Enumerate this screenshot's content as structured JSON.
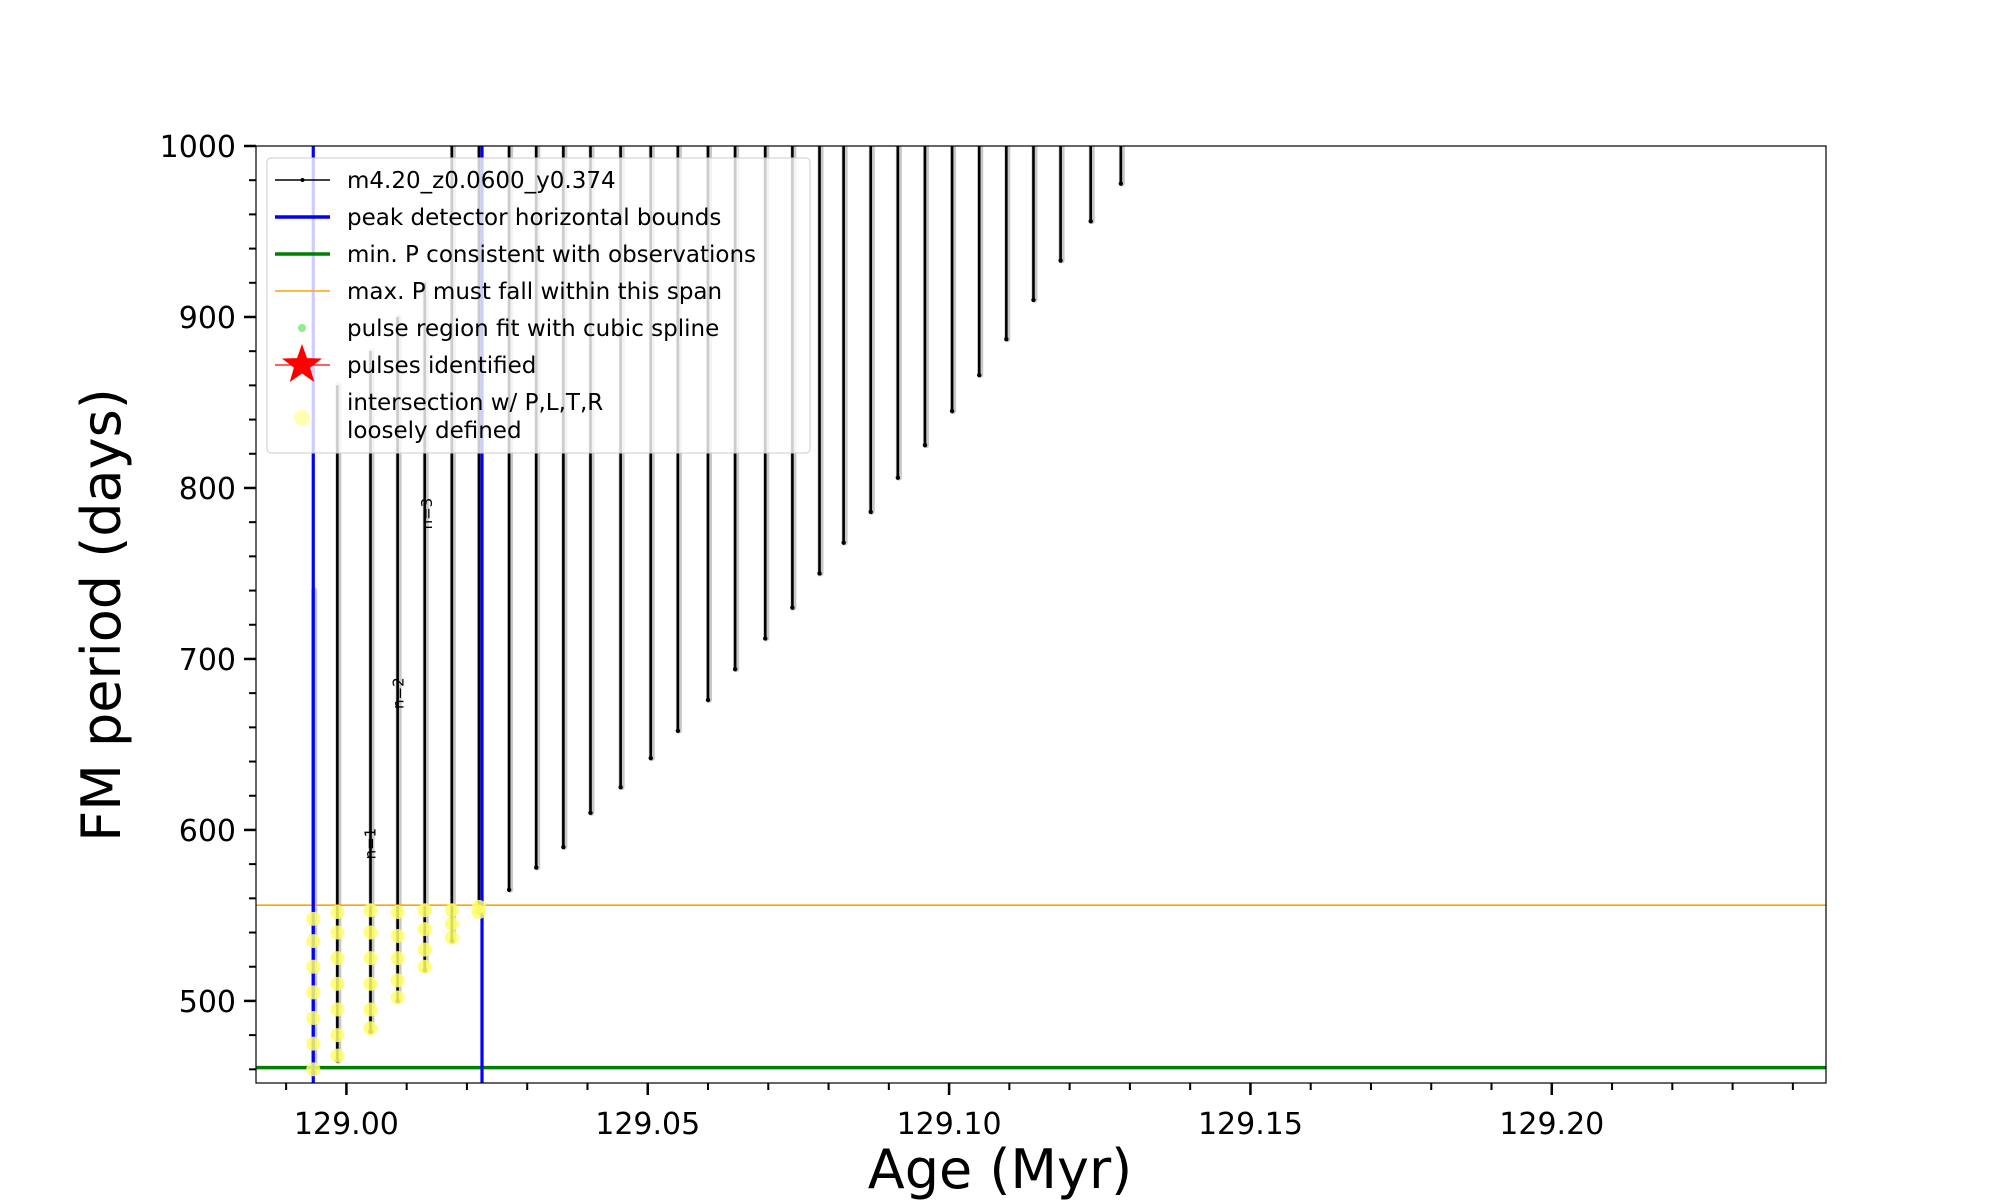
{
  "chart_data": {
    "type": "line",
    "xlabel": "Age (Myr)",
    "ylabel": "FM period (days)",
    "xlim": [
      128.985,
      129.2455
    ],
    "ylim": [
      452,
      1000
    ],
    "xticks": [
      129.0,
      129.05,
      129.1,
      129.15,
      129.2
    ],
    "xtick_labels": [
      "129.00",
      "129.05",
      "129.10",
      "129.15",
      "129.20"
    ],
    "yticks": [
      500,
      600,
      700,
      800,
      900,
      1000
    ],
    "ytick_labels": [
      "500",
      "600",
      "700",
      "800",
      "900",
      "1000"
    ],
    "grid": false,
    "legend_position": "upper-left",
    "colors": {
      "model": "#000000",
      "peak_bounds": "#0000ff",
      "min_period": "#008000",
      "max_period_span": "#ffa500",
      "spline": "#90ee90",
      "pulses": "#ff0000",
      "intersection": "#ffff66",
      "pulse_shadow": "#c8c8c8"
    },
    "series": [
      {
        "name": "m4.20_z0.0600_y0.374",
        "kind": "pulse-train",
        "pulses": [
          {
            "age": 128.9945,
            "min_period": 458,
            "max_period": 740
          },
          {
            "age": 128.9985,
            "min_period": 465,
            "max_period": 860
          },
          {
            "age": 129.004,
            "min_period": 482,
            "max_period": 880
          },
          {
            "age": 129.0085,
            "min_period": 500,
            "max_period": 900
          },
          {
            "age": 129.013,
            "min_period": 518,
            "max_period": 920
          },
          {
            "age": 129.0175,
            "min_period": 535,
            "max_period": 1000
          },
          {
            "age": 129.022,
            "min_period": 552,
            "max_period": 1000
          },
          {
            "age": 129.027,
            "min_period": 565,
            "max_period": 1000
          },
          {
            "age": 129.0315,
            "min_period": 578,
            "max_period": 1000
          },
          {
            "age": 129.036,
            "min_period": 590,
            "max_period": 1000
          },
          {
            "age": 129.0405,
            "min_period": 610,
            "max_period": 1000
          },
          {
            "age": 129.0455,
            "min_period": 625,
            "max_period": 1000
          },
          {
            "age": 129.0505,
            "min_period": 642,
            "max_period": 1000
          },
          {
            "age": 129.055,
            "min_period": 658,
            "max_period": 1000
          },
          {
            "age": 129.06,
            "min_period": 676,
            "max_period": 1000
          },
          {
            "age": 129.0645,
            "min_period": 694,
            "max_period": 1000
          },
          {
            "age": 129.0695,
            "min_period": 712,
            "max_period": 1000
          },
          {
            "age": 129.074,
            "min_period": 730,
            "max_period": 1000
          },
          {
            "age": 129.0785,
            "min_period": 750,
            "max_period": 1000
          },
          {
            "age": 129.0825,
            "min_period": 768,
            "max_period": 1000
          },
          {
            "age": 129.087,
            "min_period": 786,
            "max_period": 1000
          },
          {
            "age": 129.0915,
            "min_period": 806,
            "max_period": 1000
          },
          {
            "age": 129.096,
            "min_period": 825,
            "max_period": 1000
          },
          {
            "age": 129.1005,
            "min_period": 845,
            "max_period": 1000
          },
          {
            "age": 129.105,
            "min_period": 866,
            "max_period": 1000
          },
          {
            "age": 129.1095,
            "min_period": 887,
            "max_period": 1000
          },
          {
            "age": 129.114,
            "min_period": 910,
            "max_period": 1000
          },
          {
            "age": 129.1185,
            "min_period": 933,
            "max_period": 1000
          },
          {
            "age": 129.1235,
            "min_period": 956,
            "max_period": 1000
          },
          {
            "age": 129.1285,
            "min_period": 978,
            "max_period": 1000
          }
        ]
      },
      {
        "name": "peak detector horizontal bounds",
        "kind": "vline",
        "x": [
          128.9945,
          129.0225
        ]
      },
      {
        "name": "min. P consistent with observations",
        "kind": "hline",
        "y": 461
      },
      {
        "name": "max. P must fall within this span",
        "kind": "hline",
        "y": 556
      },
      {
        "name": "pulse region fit with cubic spline",
        "kind": "scatter"
      },
      {
        "name": "pulses identified",
        "kind": "marker"
      },
      {
        "name": "intersection w/ P,L,T,R\nloosely defined",
        "kind": "scatter",
        "points": [
          {
            "age": 128.9945,
            "periods": [
              460,
              475,
              490,
              505,
              520,
              535,
              548
            ]
          },
          {
            "age": 128.9985,
            "periods": [
              468,
              480,
              495,
              510,
              525,
              540,
              552
            ]
          },
          {
            "age": 129.004,
            "periods": [
              484,
              495,
              510,
              525,
              540,
              553
            ]
          },
          {
            "age": 129.0085,
            "periods": [
              502,
              512,
              525,
              538,
              552
            ]
          },
          {
            "age": 129.013,
            "periods": [
              520,
              530,
              542,
              553
            ]
          },
          {
            "age": 129.0175,
            "periods": [
              537,
              545,
              553
            ]
          },
          {
            "age": 129.022,
            "periods": [
              552,
              555
            ]
          }
        ]
      }
    ],
    "annotations": [
      {
        "text": "n=1",
        "x": 129.0048,
        "y": 592
      },
      {
        "text": "n=2",
        "x": 129.0095,
        "y": 680
      },
      {
        "text": "n=3",
        "x": 129.0142,
        "y": 785
      }
    ]
  }
}
